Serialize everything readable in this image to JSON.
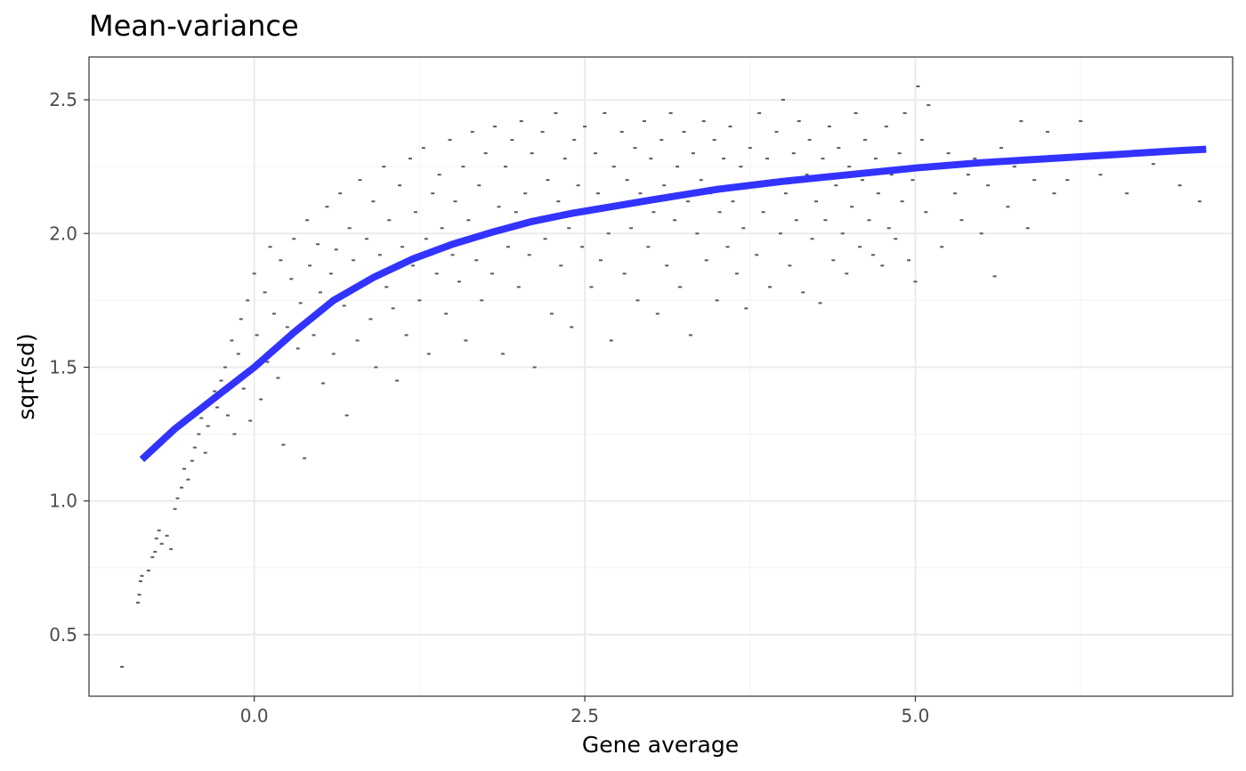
{
  "chart_data": {
    "type": "scatter",
    "title": "Mean-variance",
    "xlabel": "Gene average",
    "ylabel": "sqrt(sd)",
    "xlim": [
      -1.25,
      7.4
    ],
    "ylim": [
      0.27,
      2.66
    ],
    "x_ticks": [
      0.0,
      2.5,
      5.0
    ],
    "x_tick_labels": [
      "0.0",
      "2.5",
      "5.0"
    ],
    "y_ticks": [
      0.5,
      1.0,
      1.5,
      2.0,
      2.5
    ],
    "y_tick_labels": [
      "0.5",
      "1.0",
      "1.5",
      "2.0",
      "2.5"
    ],
    "grid": true,
    "legend": "none",
    "colors": {
      "points": "#595959",
      "trend": "#3333ff"
    },
    "trend_line": {
      "x": [
        -0.85,
        -0.6,
        -0.3,
        0.0,
        0.3,
        0.6,
        0.9,
        1.2,
        1.5,
        1.8,
        2.1,
        2.4,
        2.7,
        3.0,
        3.5,
        4.0,
        4.5,
        5.0,
        5.5,
        6.0,
        6.5,
        7.0,
        7.2
      ],
      "y": [
        1.155,
        1.27,
        1.385,
        1.5,
        1.63,
        1.75,
        1.835,
        1.905,
        1.96,
        2.005,
        2.045,
        2.075,
        2.1,
        2.125,
        2.165,
        2.195,
        2.22,
        2.245,
        2.265,
        2.28,
        2.295,
        2.31,
        2.315
      ]
    },
    "points": [
      [
        -1.0,
        0.38
      ],
      [
        -0.88,
        0.62
      ],
      [
        -0.87,
        0.65
      ],
      [
        -0.86,
        0.7
      ],
      [
        -0.85,
        0.72
      ],
      [
        -0.8,
        0.74
      ],
      [
        -0.77,
        0.79
      ],
      [
        -0.75,
        0.81
      ],
      [
        -0.74,
        0.86
      ],
      [
        -0.72,
        0.89
      ],
      [
        -0.7,
        0.84
      ],
      [
        -0.66,
        0.87
      ],
      [
        -0.63,
        0.82
      ],
      [
        -0.6,
        0.97
      ],
      [
        -0.58,
        1.01
      ],
      [
        -0.55,
        1.05
      ],
      [
        -0.53,
        1.12
      ],
      [
        -0.5,
        1.08
      ],
      [
        -0.47,
        1.15
      ],
      [
        -0.45,
        1.2
      ],
      [
        -0.42,
        1.25
      ],
      [
        -0.4,
        1.31
      ],
      [
        -0.37,
        1.18
      ],
      [
        -0.35,
        1.28
      ],
      [
        -0.3,
        1.41
      ],
      [
        -0.28,
        1.35
      ],
      [
        -0.25,
        1.45
      ],
      [
        -0.22,
        1.5
      ],
      [
        -0.2,
        1.32
      ],
      [
        -0.17,
        1.6
      ],
      [
        -0.15,
        1.25
      ],
      [
        -0.12,
        1.55
      ],
      [
        -0.1,
        1.68
      ],
      [
        -0.08,
        1.42
      ],
      [
        -0.05,
        1.75
      ],
      [
        -0.03,
        1.3
      ],
      [
        0.0,
        1.85
      ],
      [
        0.02,
        1.62
      ],
      [
        0.05,
        1.38
      ],
      [
        0.08,
        1.78
      ],
      [
        0.1,
        1.52
      ],
      [
        0.12,
        1.95
      ],
      [
        0.15,
        1.7
      ],
      [
        0.18,
        1.46
      ],
      [
        0.2,
        1.9
      ],
      [
        0.22,
        1.21
      ],
      [
        0.25,
        1.65
      ],
      [
        0.28,
        1.83
      ],
      [
        0.3,
        1.98
      ],
      [
        0.33,
        1.57
      ],
      [
        0.35,
        1.74
      ],
      [
        0.38,
        1.16
      ],
      [
        0.4,
        2.05
      ],
      [
        0.42,
        1.88
      ],
      [
        0.45,
        1.62
      ],
      [
        0.48,
        1.96
      ],
      [
        0.5,
        1.78
      ],
      [
        0.52,
        1.44
      ],
      [
        0.55,
        2.1
      ],
      [
        0.58,
        1.85
      ],
      [
        0.6,
        1.55
      ],
      [
        0.62,
        1.94
      ],
      [
        0.65,
        2.15
      ],
      [
        0.68,
        1.73
      ],
      [
        0.7,
        1.32
      ],
      [
        0.72,
        2.02
      ],
      [
        0.75,
        1.9
      ],
      [
        0.78,
        1.6
      ],
      [
        0.8,
        2.2
      ],
      [
        0.82,
        1.82
      ],
      [
        0.85,
        1.98
      ],
      [
        0.88,
        1.68
      ],
      [
        0.9,
        2.12
      ],
      [
        0.92,
        1.5
      ],
      [
        0.95,
        1.92
      ],
      [
        0.98,
        2.25
      ],
      [
        1.0,
        1.8
      ],
      [
        1.02,
        2.05
      ],
      [
        1.05,
        1.72
      ],
      [
        1.08,
        1.45
      ],
      [
        1.1,
        2.18
      ],
      [
        1.12,
        1.95
      ],
      [
        1.15,
        1.62
      ],
      [
        1.18,
        2.28
      ],
      [
        1.2,
        1.88
      ],
      [
        1.22,
        2.08
      ],
      [
        1.25,
        1.75
      ],
      [
        1.28,
        2.32
      ],
      [
        1.3,
        1.98
      ],
      [
        1.32,
        1.55
      ],
      [
        1.35,
        2.15
      ],
      [
        1.38,
        1.85
      ],
      [
        1.4,
        2.22
      ],
      [
        1.42,
        2.02
      ],
      [
        1.45,
        1.7
      ],
      [
        1.48,
        2.35
      ],
      [
        1.5,
        1.92
      ],
      [
        1.52,
        2.12
      ],
      [
        1.55,
        1.82
      ],
      [
        1.58,
        2.25
      ],
      [
        1.6,
        1.6
      ],
      [
        1.62,
        2.05
      ],
      [
        1.65,
        2.38
      ],
      [
        1.68,
        1.9
      ],
      [
        1.7,
        2.18
      ],
      [
        1.72,
        1.75
      ],
      [
        1.75,
        2.3
      ],
      [
        1.78,
        2.0
      ],
      [
        1.8,
        1.85
      ],
      [
        1.82,
        2.4
      ],
      [
        1.85,
        2.1
      ],
      [
        1.88,
        1.55
      ],
      [
        1.9,
        2.25
      ],
      [
        1.92,
        1.95
      ],
      [
        1.95,
        2.35
      ],
      [
        1.98,
        2.08
      ],
      [
        2.0,
        1.8
      ],
      [
        2.02,
        2.42
      ],
      [
        2.05,
        2.15
      ],
      [
        2.08,
        1.92
      ],
      [
        2.1,
        2.3
      ],
      [
        2.12,
        1.5
      ],
      [
        2.15,
        2.05
      ],
      [
        2.18,
        2.38
      ],
      [
        2.2,
        1.98
      ],
      [
        2.22,
        2.2
      ],
      [
        2.25,
        1.7
      ],
      [
        2.28,
        2.45
      ],
      [
        2.3,
        2.12
      ],
      [
        2.32,
        1.88
      ],
      [
        2.35,
        2.28
      ],
      [
        2.38,
        2.02
      ],
      [
        2.4,
        1.65
      ],
      [
        2.42,
        2.35
      ],
      [
        2.45,
        2.18
      ],
      [
        2.48,
        1.95
      ],
      [
        2.5,
        2.4
      ],
      [
        2.52,
        2.08
      ],
      [
        2.55,
        1.8
      ],
      [
        2.58,
        2.3
      ],
      [
        2.6,
        2.15
      ],
      [
        2.62,
        1.9
      ],
      [
        2.65,
        2.45
      ],
      [
        2.68,
        2.0
      ],
      [
        2.7,
        1.6
      ],
      [
        2.72,
        2.25
      ],
      [
        2.75,
        2.1
      ],
      [
        2.78,
        2.38
      ],
      [
        2.8,
        1.85
      ],
      [
        2.82,
        2.2
      ],
      [
        2.85,
        2.02
      ],
      [
        2.88,
        2.32
      ],
      [
        2.9,
        1.75
      ],
      [
        2.92,
        2.15
      ],
      [
        2.95,
        2.42
      ],
      [
        2.98,
        1.95
      ],
      [
        3.0,
        2.28
      ],
      [
        3.02,
        2.08
      ],
      [
        3.05,
        1.7
      ],
      [
        3.08,
        2.35
      ],
      [
        3.1,
        2.18
      ],
      [
        3.12,
        1.88
      ],
      [
        3.15,
        2.45
      ],
      [
        3.18,
        2.05
      ],
      [
        3.2,
        2.25
      ],
      [
        3.22,
        1.8
      ],
      [
        3.25,
        2.38
      ],
      [
        3.28,
        2.12
      ],
      [
        3.3,
        1.62
      ],
      [
        3.32,
        2.3
      ],
      [
        3.35,
        2.0
      ],
      [
        3.38,
        2.2
      ],
      [
        3.4,
        2.42
      ],
      [
        3.42,
        1.9
      ],
      [
        3.45,
        2.15
      ],
      [
        3.48,
        2.35
      ],
      [
        3.5,
        1.75
      ],
      [
        3.52,
        2.08
      ],
      [
        3.55,
        2.28
      ],
      [
        3.58,
        1.95
      ],
      [
        3.6,
        2.4
      ],
      [
        3.62,
        2.12
      ],
      [
        3.65,
        1.85
      ],
      [
        3.68,
        2.25
      ],
      [
        3.7,
        2.02
      ],
      [
        3.72,
        1.72
      ],
      [
        3.75,
        2.32
      ],
      [
        3.78,
        2.18
      ],
      [
        3.8,
        1.92
      ],
      [
        3.82,
        2.45
      ],
      [
        3.85,
        2.08
      ],
      [
        3.88,
        2.28
      ],
      [
        3.9,
        1.8
      ],
      [
        3.92,
        2.2
      ],
      [
        3.95,
        2.38
      ],
      [
        3.98,
        2.0
      ],
      [
        4.0,
        2.5
      ],
      [
        4.02,
        2.15
      ],
      [
        4.05,
        1.88
      ],
      [
        4.08,
        2.3
      ],
      [
        4.1,
        2.05
      ],
      [
        4.12,
        2.42
      ],
      [
        4.15,
        1.78
      ],
      [
        4.18,
        2.22
      ],
      [
        4.2,
        2.35
      ],
      [
        4.22,
        1.98
      ],
      [
        4.25,
        2.12
      ],
      [
        4.28,
        1.74
      ],
      [
        4.3,
        2.28
      ],
      [
        4.32,
        2.05
      ],
      [
        4.35,
        2.4
      ],
      [
        4.38,
        1.9
      ],
      [
        4.4,
        2.18
      ],
      [
        4.42,
        2.32
      ],
      [
        4.45,
        2.0
      ],
      [
        4.48,
        1.85
      ],
      [
        4.5,
        2.25
      ],
      [
        4.52,
        2.1
      ],
      [
        4.55,
        2.45
      ],
      [
        4.58,
        1.95
      ],
      [
        4.6,
        2.2
      ],
      [
        4.62,
        2.35
      ],
      [
        4.65,
        2.05
      ],
      [
        4.68,
        1.92
      ],
      [
        4.7,
        2.28
      ],
      [
        4.72,
        2.15
      ],
      [
        4.75,
        1.88
      ],
      [
        4.78,
        2.4
      ],
      [
        4.8,
        2.02
      ],
      [
        4.82,
        2.22
      ],
      [
        4.85,
        1.98
      ],
      [
        4.88,
        2.3
      ],
      [
        4.9,
        2.12
      ],
      [
        4.92,
        2.45
      ],
      [
        4.95,
        1.9
      ],
      [
        4.98,
        2.2
      ],
      [
        5.0,
        1.82
      ],
      [
        5.02,
        2.55
      ],
      [
        5.05,
        2.35
      ],
      [
        5.08,
        2.08
      ],
      [
        5.1,
        2.48
      ],
      [
        5.15,
        2.25
      ],
      [
        5.2,
        1.95
      ],
      [
        5.25,
        2.3
      ],
      [
        5.3,
        2.15
      ],
      [
        5.35,
        2.05
      ],
      [
        5.4,
        2.22
      ],
      [
        5.45,
        2.28
      ],
      [
        5.5,
        2.0
      ],
      [
        5.55,
        2.18
      ],
      [
        5.6,
        1.84
      ],
      [
        5.65,
        2.32
      ],
      [
        5.7,
        2.1
      ],
      [
        5.75,
        2.25
      ],
      [
        5.8,
        2.42
      ],
      [
        5.85,
        2.02
      ],
      [
        5.9,
        2.2
      ],
      [
        5.95,
        2.28
      ],
      [
        6.0,
        2.38
      ],
      [
        6.05,
        2.15
      ],
      [
        6.15,
        2.2
      ],
      [
        6.25,
        2.42
      ],
      [
        6.4,
        2.22
      ],
      [
        6.6,
        2.15
      ],
      [
        6.8,
        2.26
      ],
      [
        7.0,
        2.18
      ],
      [
        7.15,
        2.12
      ]
    ]
  }
}
